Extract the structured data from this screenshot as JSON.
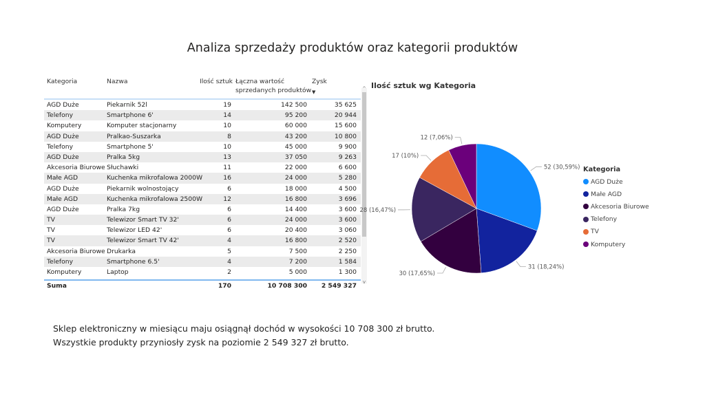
{
  "page": {
    "title": "Analiza sprzedaży produktów oraz kategorii produktów"
  },
  "table": {
    "headers": [
      "Kategoria",
      "Nazwa",
      "Ilość sztuk",
      "Łączna wartość sprzedanych produktów",
      "Zysk"
    ],
    "header_lines": {
      "value_line1": "Łączna wartość",
      "value_line2": "sprzedanych produktów"
    },
    "sort_icon": "sort-descending-icon",
    "rows": [
      [
        "AGD Duże",
        "Piekarnik 52l",
        "19",
        "142 500",
        "35 625"
      ],
      [
        "Telefony",
        "Smartphone 6'",
        "14",
        "95 200",
        "20 944"
      ],
      [
        "Komputery",
        "Komputer stacjonarny",
        "10",
        "60 000",
        "15 600"
      ],
      [
        "AGD Duże",
        "Pralkao-Suszarka",
        "8",
        "43 200",
        "10 800"
      ],
      [
        "Telefony",
        "Smartphone 5'",
        "10",
        "45 000",
        "9 900"
      ],
      [
        "AGD Duże",
        "Pralka 5kg",
        "13",
        "37 050",
        "9 263"
      ],
      [
        "Akcesoria Biurowe",
        "Słuchawki",
        "11",
        "22 000",
        "6 600"
      ],
      [
        "Małe AGD",
        "Kuchenka mikrofalowa 2000W",
        "16",
        "24 000",
        "5 280"
      ],
      [
        "AGD Duże",
        "Piekarnik wolnostojący",
        "6",
        "18 000",
        "4 500"
      ],
      [
        "Małe AGD",
        "Kuchenka mikrofalowa 2500W",
        "12",
        "16 800",
        "3 696"
      ],
      [
        "AGD Duże",
        "Pralka 7kg",
        "6",
        "14 400",
        "3 600"
      ],
      [
        "TV",
        "Telewizor Smart TV 32'",
        "6",
        "24 000",
        "3 600"
      ],
      [
        "TV",
        "Telewizor LED 42'",
        "6",
        "20 400",
        "3 060"
      ],
      [
        "TV",
        "Telewizor Smart TV 42'",
        "4",
        "16 800",
        "2 520"
      ],
      [
        "Akcesoria Biurowe",
        "Drukarka",
        "5",
        "7 500",
        "2 250"
      ],
      [
        "Telefony",
        "Smartphone 6.5'",
        "4",
        "7 200",
        "1 584"
      ],
      [
        "Komputery",
        "Laptop",
        "2",
        "5 000",
        "1 300"
      ]
    ],
    "total": {
      "label": "Suma",
      "qty": "170",
      "value": "10 708 300",
      "profit": "2 549 327"
    }
  },
  "chart_data": {
    "type": "pie",
    "title": "Ilość sztuk wg Kategoria",
    "legend_title": "Kategoria",
    "legend_position": "right",
    "categories": [
      "AGD Duże",
      "Małe AGD",
      "Akcesoria Biurowe",
      "Telefony",
      "TV",
      "Komputery"
    ],
    "values": [
      52,
      31,
      30,
      28,
      17,
      12
    ],
    "labels": [
      "52 (30,59%)",
      "31 (18,24%)",
      "30 (17,65%)",
      "28 (16,47%)",
      "17 (10%)",
      "12 (7,06%)"
    ],
    "colors": [
      "#118DFF",
      "#12239E",
      "#33003F",
      "#3A2660",
      "#E66C37",
      "#6B007B"
    ]
  },
  "note": {
    "line1": "Sklep elektroniczny w miesiącu maju osiągnął dochód w wysokości 10 708 300 zł brutto.",
    "line2": "Wszystkie produkty przyniosły zysk na poziomie 2 549 327 zł brutto."
  }
}
